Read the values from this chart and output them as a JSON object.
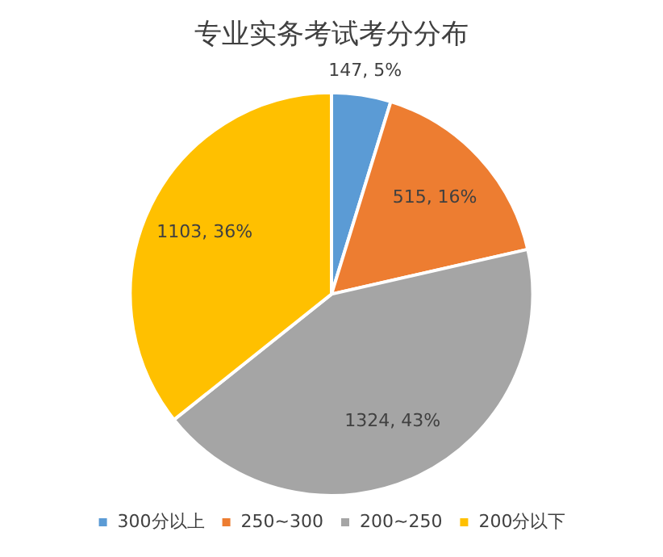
{
  "chart_data": {
    "type": "pie",
    "title": "专业实务考试考分分布",
    "categories": [
      "300分以上",
      "250~300",
      "200~250",
      "200分以下"
    ],
    "values": [
      147,
      515,
      1324,
      1103
    ],
    "colors": [
      "#5b9bd5",
      "#ed7d31",
      "#a5a5a5",
      "#ffc000"
    ],
    "value_labels": [
      "147, 5%",
      "515, 16%",
      "1324, 43%",
      "1103, 36%"
    ],
    "legend": "bottom"
  }
}
